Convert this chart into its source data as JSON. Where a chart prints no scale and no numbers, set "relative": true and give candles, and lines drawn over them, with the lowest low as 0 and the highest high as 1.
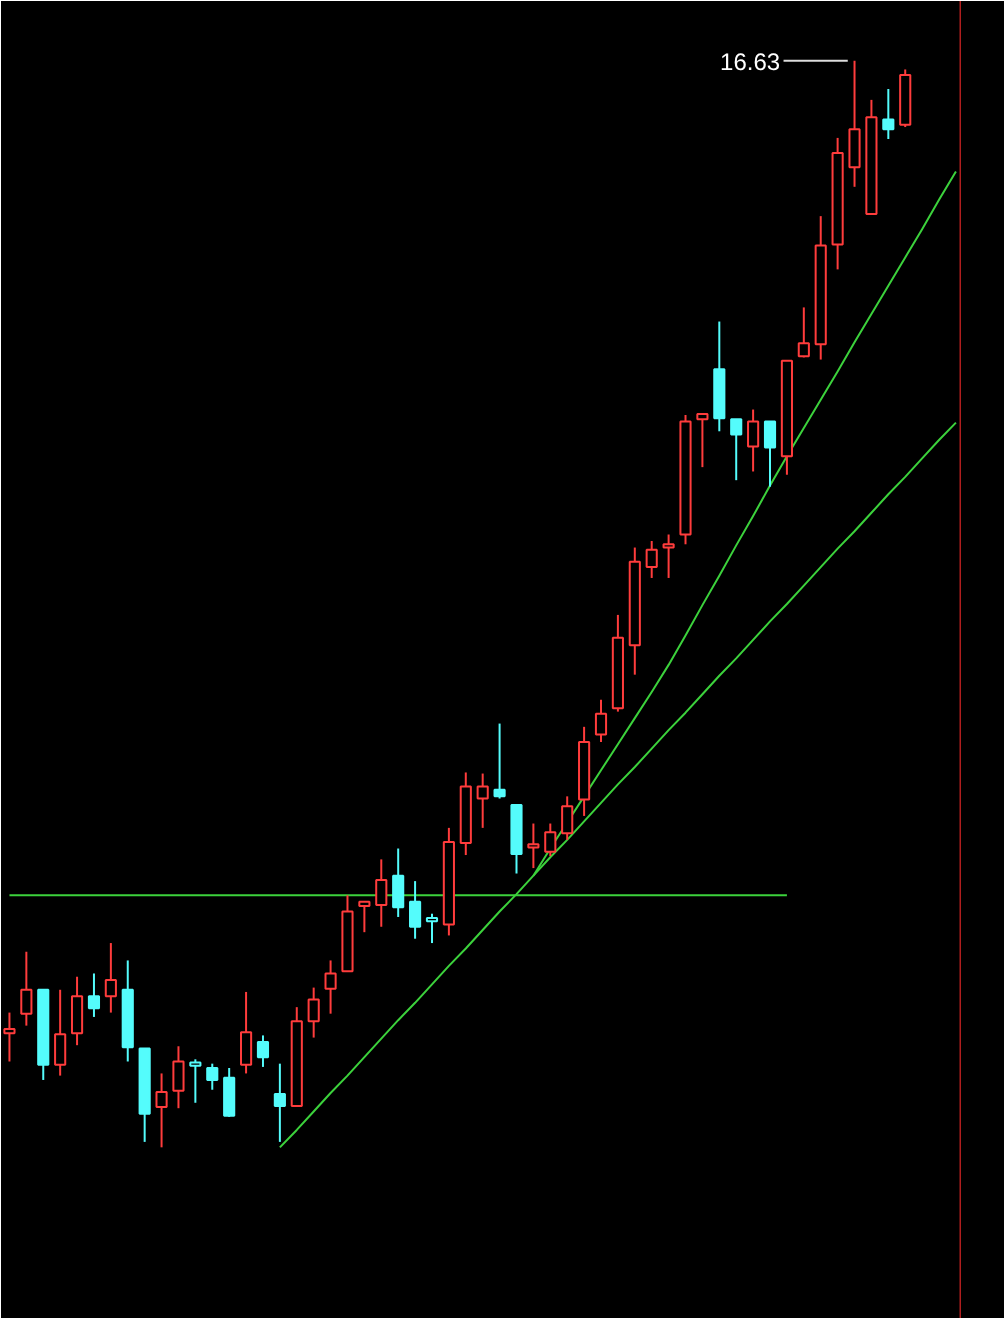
{
  "chart_data": {
    "type": "candlestick",
    "relative": true,
    "categories": [
      null,
      null,
      null,
      null,
      null,
      null,
      null,
      null,
      null,
      null,
      null,
      null,
      null,
      null,
      null,
      null,
      null,
      null,
      null,
      null,
      null,
      null,
      null,
      null,
      null,
      null,
      null,
      null,
      null,
      null,
      null,
      null,
      null,
      null,
      null,
      null,
      null,
      null,
      null,
      null,
      null,
      null,
      null,
      null,
      null,
      null,
      null,
      null,
      null,
      null,
      null,
      null,
      null,
      null,
      null,
      null,
      null
    ],
    "ohlc": [
      [
        0.105,
        0.124,
        0.079,
        0.109
      ],
      [
        0.123,
        0.18,
        0.112,
        0.145
      ],
      [
        0.145,
        0.145,
        0.062,
        0.076
      ],
      [
        0.076,
        0.145,
        0.066,
        0.104
      ],
      [
        0.105,
        0.157,
        0.094,
        0.139
      ],
      [
        0.139,
        0.16,
        0.12,
        0.128
      ],
      [
        0.139,
        0.188,
        0.124,
        0.154
      ],
      [
        0.145,
        0.172,
        0.079,
        0.092
      ],
      [
        0.091,
        0.091,
        0.005,
        0.031
      ],
      [
        0.037,
        0.068,
        0.0,
        0.051
      ],
      [
        0.052,
        0.093,
        0.036,
        0.079
      ],
      [
        0.075,
        0.081,
        0.041,
        0.075
      ],
      [
        0.073,
        0.077,
        0.053,
        0.062
      ],
      [
        0.064,
        0.073,
        0.028,
        0.029
      ],
      [
        0.076,
        0.143,
        0.068,
        0.106
      ],
      [
        0.097,
        0.103,
        0.074,
        0.083
      ],
      [
        0.049,
        0.077,
        0.005,
        0.038
      ],
      [
        0.038,
        0.129,
        0.038,
        0.116
      ],
      [
        0.116,
        0.147,
        0.101,
        0.136
      ],
      [
        0.146,
        0.172,
        0.123,
        0.16
      ],
      [
        0.162,
        0.232,
        0.162,
        0.217
      ],
      [
        0.222,
        0.226,
        0.198,
        0.226
      ],
      [
        0.223,
        0.265,
        0.203,
        0.246
      ],
      [
        0.25,
        0.275,
        0.212,
        0.221
      ],
      [
        0.226,
        0.245,
        0.192,
        0.203
      ],
      [
        0.208,
        0.215,
        0.188,
        0.208
      ],
      [
        0.205,
        0.294,
        0.195,
        0.281
      ],
      [
        0.28,
        0.345,
        0.269,
        0.332
      ],
      [
        0.321,
        0.344,
        0.294,
        0.332
      ],
      [
        0.329,
        0.39,
        0.321,
        0.323
      ],
      [
        0.315,
        0.316,
        0.252,
        0.27
      ],
      [
        0.276,
        0.298,
        0.257,
        0.278
      ],
      [
        0.272,
        0.298,
        0.268,
        0.29
      ],
      [
        0.289,
        0.323,
        0.283,
        0.314
      ],
      [
        0.32,
        0.387,
        0.305,
        0.373
      ],
      [
        0.38,
        0.412,
        0.373,
        0.399
      ],
      [
        0.404,
        0.49,
        0.401,
        0.469
      ],
      [
        0.462,
        0.552,
        0.435,
        0.539
      ],
      [
        0.534,
        0.558,
        0.524,
        0.55
      ],
      [
        0.552,
        0.564,
        0.524,
        0.553
      ],
      [
        0.564,
        0.674,
        0.555,
        0.668
      ],
      [
        0.67,
        0.675,
        0.626,
        0.675
      ],
      [
        0.716,
        0.76,
        0.659,
        0.671
      ],
      [
        0.67,
        0.67,
        0.614,
        0.656
      ],
      [
        0.645,
        0.679,
        0.622,
        0.668
      ],
      [
        0.668,
        0.668,
        0.608,
        0.644
      ],
      [
        0.636,
        0.724,
        0.619,
        0.724
      ],
      [
        0.728,
        0.773,
        0.727,
        0.74
      ],
      [
        0.739,
        0.857,
        0.725,
        0.83
      ],
      [
        0.831,
        0.929,
        0.808,
        0.915
      ],
      [
        0.902,
        1.0,
        0.884,
        0.937
      ],
      [
        0.859,
        0.964,
        0.859,
        0.948
      ],
      [
        0.946,
        0.974,
        0.928,
        0.937
      ],
      [
        0.941,
        0.992,
        0.939,
        0.987
      ],
      null,
      null,
      null
    ],
    "colors": [
      "#ff3c3c",
      "#ff3c3c",
      "#54fcfc",
      "#ff3c3c",
      "#ff3c3c",
      "#54fcfc",
      "#ff3c3c",
      "#54fcfc",
      "#54fcfc",
      "#ff3c3c",
      "#ff3c3c",
      "#54fcfc",
      "#54fcfc",
      "#54fcfc",
      "#ff3c3c",
      "#54fcfc",
      "#54fcfc",
      "#ff3c3c",
      "#ff3c3c",
      "#ff3c3c",
      "#ff3c3c",
      "#ff3c3c",
      "#ff3c3c",
      "#54fcfc",
      "#54fcfc",
      "#54fcfc",
      "#ff3c3c",
      "#ff3c3c",
      "#ff3c3c",
      "#54fcfc",
      "#54fcfc",
      "#ff3c3c",
      "#ff3c3c",
      "#ff3c3c",
      "#ff3c3c",
      "#ff3c3c",
      "#ff3c3c",
      "#ff3c3c",
      "#ff3c3c",
      "#ff3c3c",
      "#ff3c3c",
      "#ff3c3c",
      "#54fcfc",
      "#54fcfc",
      "#ff3c3c",
      "#54fcfc",
      "#ff3c3c",
      "#ff3c3c",
      "#ff3c3c",
      "#ff3c3c",
      "#ff3c3c",
      "#ff3c3c",
      "#54fcfc",
      "#ff3c3c",
      null,
      null,
      null
    ],
    "series": [
      {
        "type": "line",
        "color": "#3cd23c",
        "values": [
          0.232,
          0.232,
          0.232,
          0.232,
          0.232,
          0.232,
          0.232,
          0.232,
          0.232,
          0.232,
          0.232,
          0.232,
          0.232,
          0.232,
          0.232,
          0.232,
          0.232,
          0.232,
          0.232,
          0.232,
          0.232,
          0.232,
          0.232,
          0.232,
          0.232,
          0.232,
          0.232,
          0.232,
          0.232,
          0.232,
          0.232,
          0.232,
          0.232,
          0.232,
          0.232,
          0.232,
          0.232,
          0.232,
          0.232,
          0.232,
          0.232,
          0.232,
          0.232,
          0.232,
          0.232,
          0.232,
          0.232,
          null,
          null,
          null,
          null,
          null,
          null,
          null,
          null,
          null,
          null
        ]
      },
      {
        "type": "line",
        "color": "#3cd23c",
        "values": [
          null,
          null,
          null,
          null,
          null,
          null,
          null,
          null,
          null,
          null,
          null,
          null,
          null,
          null,
          null,
          null,
          0.0,
          0.016,
          0.033,
          0.05,
          0.066,
          0.083,
          0.1,
          0.117,
          0.133,
          0.15,
          0.167,
          0.183,
          0.2,
          0.217,
          0.233,
          0.25,
          0.267,
          0.283,
          0.3,
          0.317,
          0.334,
          0.35,
          0.367,
          0.384,
          0.4,
          0.417,
          0.434,
          0.45,
          0.467,
          0.484,
          0.5,
          0.517,
          0.534,
          0.551,
          0.567,
          0.584,
          0.601,
          0.617,
          0.634,
          0.651,
          0.667
        ]
      },
      {
        "type": "line",
        "color": "#3cd23c",
        "values": [
          null,
          null,
          null,
          null,
          null,
          null,
          null,
          null,
          null,
          null,
          null,
          null,
          null,
          null,
          null,
          null,
          null,
          null,
          null,
          null,
          null,
          null,
          null,
          null,
          null,
          null,
          null,
          null,
          null,
          null,
          null,
          0.25,
          0.275,
          0.299,
          0.323,
          0.347,
          0.371,
          0.395,
          0.419,
          0.444,
          0.471,
          0.499,
          0.526,
          0.554,
          0.581,
          0.609,
          0.636,
          0.662,
          0.688,
          0.714,
          0.741,
          0.767,
          0.793,
          0.819,
          0.845,
          0.872,
          0.898
        ]
      }
    ],
    "annotations": [
      "16.63"
    ]
  }
}
